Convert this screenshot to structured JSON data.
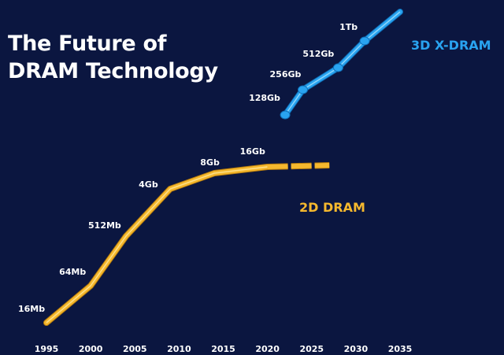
{
  "page": {
    "title_line1": "The Future of",
    "title_line2": "DRAM Technology"
  },
  "chart_data": {
    "type": "line",
    "title": "The Future of DRAM Technology",
    "xlabel": "",
    "ylabel": "",
    "x_ticks": [
      1995,
      2000,
      2005,
      2010,
      2015,
      2020,
      2025,
      2030,
      2035
    ],
    "xlim": [
      1995,
      2035
    ],
    "grid": false,
    "legend": "inline labels",
    "series": [
      {
        "name": "2D DRAM",
        "color": "#f5b82e",
        "style": "solid, then dashed beyond 2020",
        "points": [
          {
            "x": 1995,
            "y": 0,
            "label": "16Mb"
          },
          {
            "x": 2000,
            "y": 0,
            "label": "64Mb"
          },
          {
            "x": 2004,
            "y": 0,
            "label": "512Mb"
          },
          {
            "x": 2009,
            "y": 0,
            "label": "4Gb"
          },
          {
            "x": 2014,
            "y": 0,
            "label": "8Gb"
          },
          {
            "x": 2020,
            "y": 0,
            "label": "16Gb"
          },
          {
            "x": 2027,
            "y": 0,
            "label": ""
          }
        ]
      },
      {
        "name": "3D X-DRAM",
        "color": "#29a3f0",
        "points": [
          {
            "x": 2022,
            "y": 0,
            "label": "128Gb"
          },
          {
            "x": 2024,
            "y": 0,
            "label": "256Gb"
          },
          {
            "x": 2028,
            "y": 0,
            "label": "512Gb"
          },
          {
            "x": 2031,
            "y": 0,
            "label": "1Tb"
          },
          {
            "x": 2035,
            "y": 0,
            "label": ""
          }
        ]
      }
    ]
  }
}
